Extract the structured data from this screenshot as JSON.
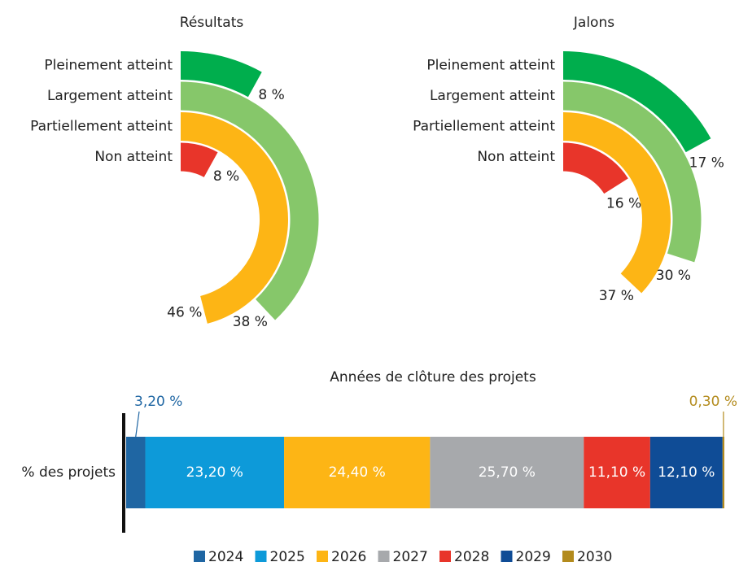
{
  "chart_data": [
    {
      "type": "radial_bar",
      "title": "Résultats",
      "categories": [
        "Pleinement atteint",
        "Largement atteint",
        "Partiellement atteint",
        "Non atteint"
      ],
      "values": [
        8,
        38,
        46,
        8
      ],
      "value_labels": [
        "8 %",
        "38 %",
        "46 %",
        "8 %"
      ],
      "colors": [
        "#00ae4d",
        "#86c76a",
        "#fdb515",
        "#e8352a"
      ]
    },
    {
      "type": "radial_bar",
      "title": "Jalons",
      "categories": [
        "Pleinement atteint",
        "Largement atteint",
        "Partiellement atteint",
        "Non atteint"
      ],
      "values": [
        17,
        30,
        37,
        16
      ],
      "value_labels": [
        "17 %",
        "30 %",
        "37 %",
        "16 %"
      ],
      "colors": [
        "#00ae4d",
        "#86c76a",
        "#fdb515",
        "#e8352a"
      ]
    },
    {
      "type": "stacked_bar",
      "title": "Années de clôture des projets",
      "orientation": "horizontal",
      "categories": [
        "% des projets"
      ],
      "series": [
        {
          "name": "2024",
          "color": "#1f66a3",
          "values": [
            3.2
          ],
          "value_labels": [
            "3,20 %"
          ]
        },
        {
          "name": "2025",
          "color": "#0d9ad9",
          "values": [
            23.2
          ],
          "value_labels": [
            "23,20 %"
          ]
        },
        {
          "name": "2026",
          "color": "#fdb515",
          "values": [
            24.4
          ],
          "value_labels": [
            "24,40 %"
          ]
        },
        {
          "name": "2027",
          "color": "#a7a9ac",
          "values": [
            25.7
          ],
          "value_labels": [
            "25,70 %"
          ]
        },
        {
          "name": "2028",
          "color": "#e8352a",
          "values": [
            11.1
          ],
          "value_labels": [
            "11,10 %"
          ]
        },
        {
          "name": "2029",
          "color": "#0f4c96",
          "values": [
            12.1
          ],
          "value_labels": [
            "12,10 %"
          ]
        },
        {
          "name": "2030",
          "color": "#b38b1d",
          "values": [
            0.3
          ],
          "value_labels": [
            "0,30 %"
          ]
        }
      ]
    }
  ]
}
